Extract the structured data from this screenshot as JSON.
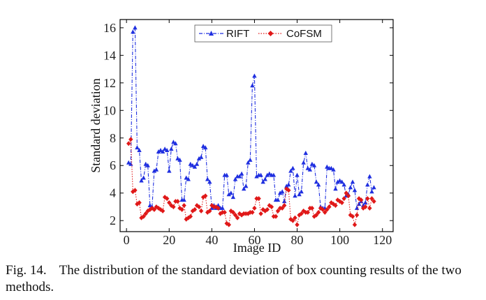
{
  "caption": {
    "label": "Fig. 14.",
    "text": "The distribution of the standard deviation of box counting results of the two methods."
  },
  "chart_data": {
    "type": "line",
    "title": "",
    "xlabel": "Image ID",
    "ylabel": "Standard deviation",
    "xlim": [
      -3,
      125
    ],
    "ylim": [
      1.2,
      16.6
    ],
    "xticks": [
      0,
      20,
      40,
      60,
      80,
      100,
      120
    ],
    "yticks": [
      2,
      4,
      6,
      8,
      10,
      12,
      14,
      16
    ],
    "grid": false,
    "legend_position": "top-center",
    "x": [
      1,
      2,
      3,
      4,
      5,
      6,
      7,
      8,
      9,
      10,
      11,
      12,
      13,
      14,
      15,
      16,
      17,
      18,
      19,
      20,
      21,
      22,
      23,
      24,
      25,
      26,
      27,
      28,
      29,
      30,
      31,
      32,
      33,
      34,
      35,
      36,
      37,
      38,
      39,
      40,
      41,
      42,
      43,
      44,
      45,
      46,
      47,
      48,
      49,
      50,
      51,
      52,
      53,
      54,
      55,
      56,
      57,
      58,
      59,
      60,
      61,
      62,
      63,
      64,
      65,
      66,
      67,
      68,
      69,
      70,
      71,
      72,
      73,
      74,
      75,
      76,
      77,
      78,
      79,
      80,
      81,
      82,
      83,
      84,
      85,
      86,
      87,
      88,
      89,
      90,
      91,
      92,
      93,
      94,
      95,
      96,
      97,
      98,
      99,
      100,
      101,
      102,
      103,
      104,
      105,
      106,
      107,
      108,
      109,
      110,
      111,
      112,
      113,
      114,
      115,
      116
    ],
    "series": [
      {
        "name": "RIFT",
        "color": "#1f2fe0",
        "marker": "triangle",
        "line_style": "dash-dot",
        "values": [
          6.2,
          6.1,
          15.7,
          16.0,
          7.3,
          7.1,
          4.9,
          5.1,
          6.1,
          6.0,
          3.1,
          3.0,
          5.6,
          5.7,
          7.0,
          7.1,
          7.0,
          7.2,
          7.1,
          5.6,
          7.2,
          7.7,
          7.6,
          6.5,
          6.4,
          3.5,
          3.5,
          5.1,
          5.0,
          6.1,
          6.0,
          5.9,
          6.1,
          6.5,
          6.6,
          7.4,
          7.3,
          5.0,
          4.8,
          2.9,
          3.1,
          2.9,
          3.1,
          2.9,
          2.9,
          5.3,
          5.3,
          3.9,
          4.0,
          3.7,
          5.0,
          5.2,
          5.2,
          5.4,
          4.3,
          4.5,
          6.2,
          6.4,
          11.8,
          12.5,
          5.2,
          5.3,
          5.3,
          4.8,
          5.0,
          5.3,
          5.4,
          5.3,
          5.3,
          3.5,
          3.5,
          4.0,
          4.1,
          3.4,
          4.5,
          4.6,
          5.6,
          5.8,
          3.8,
          5.3,
          3.9,
          4.1,
          6.2,
          6.9,
          5.8,
          5.7,
          6.1,
          6.0,
          4.8,
          4.6,
          3.0,
          2.9,
          2.9,
          5.9,
          5.8,
          5.8,
          5.7,
          4.3,
          4.8,
          4.9,
          4.8,
          4.6,
          3.8,
          3.9,
          4.4,
          4.8,
          4.2,
          2.9,
          3.2,
          3.4,
          3.1,
          3.3,
          4.6,
          5.2,
          4.1,
          4.4
        ]
      },
      {
        "name": "CoFSM",
        "color": "#e01818",
        "marker": "diamond",
        "line_style": "dot",
        "values": [
          7.6,
          7.9,
          4.1,
          4.2,
          3.2,
          3.3,
          2.2,
          2.3,
          2.5,
          2.7,
          2.8,
          2.9,
          2.8,
          3.0,
          2.9,
          2.8,
          2.7,
          3.7,
          3.6,
          3.3,
          3.1,
          3.0,
          3.4,
          3.4,
          2.9,
          2.8,
          3.1,
          2.1,
          2.2,
          2.3,
          2.7,
          2.8,
          3.1,
          3.0,
          2.7,
          3.7,
          3.8,
          2.6,
          2.7,
          3.1,
          3.0,
          3.0,
          2.9,
          2.5,
          2.6,
          2.6,
          1.8,
          1.7,
          2.7,
          2.6,
          2.4,
          2.2,
          2.5,
          2.4,
          2.5,
          2.5,
          2.5,
          2.6,
          2.6,
          2.9,
          3.6,
          3.6,
          2.5,
          2.8,
          2.7,
          2.8,
          3.1,
          3.0,
          2.3,
          2.3,
          2.7,
          2.9,
          2.9,
          3.1,
          4.3,
          4.2,
          2.1,
          2.0,
          2.2,
          1.7,
          2.4,
          2.5,
          2.7,
          2.6,
          2.6,
          2.9,
          2.9,
          2.3,
          2.4,
          2.6,
          2.9,
          2.8,
          2.6,
          2.8,
          3.0,
          3.3,
          3.2,
          3.1,
          3.5,
          3.4,
          3.3,
          3.6,
          4.0,
          3.8,
          2.4,
          2.3,
          1.7,
          2.4,
          3.6,
          3.5,
          2.9,
          3.0,
          3.6,
          2.9,
          3.6,
          3.4
        ]
      }
    ]
  }
}
